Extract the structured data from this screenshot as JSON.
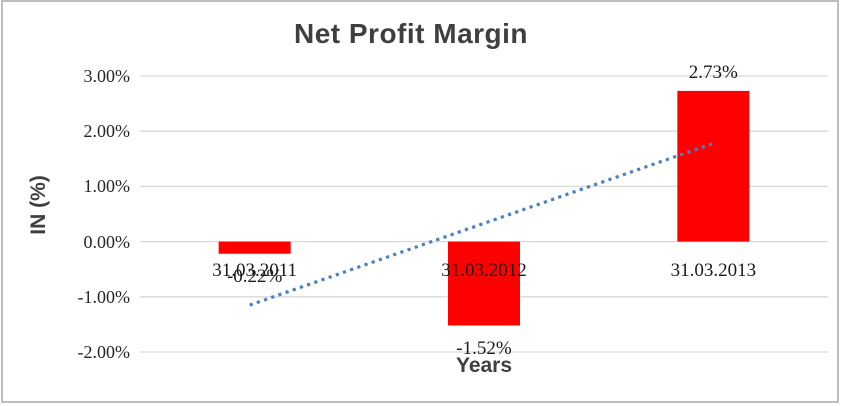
{
  "chart_data": {
    "type": "bar",
    "title": "Net Profit Margin",
    "xlabel": "Years",
    "ylabel": "IN (%)",
    "categories": [
      "31.03.2011",
      "31.03.2012",
      "31.03.2013"
    ],
    "values": [
      -0.22,
      -1.52,
      2.73
    ],
    "data_labels": [
      "-0.22%",
      "-1.52%",
      "2.73%"
    ],
    "y_axis": {
      "tick_labels": [
        "3.00%",
        "2.00%",
        "1.00%",
        "0.00%",
        "-1.00%",
        "-2.00%"
      ],
      "tick_values": [
        3,
        2,
        1,
        0,
        -1,
        -2
      ],
      "ylim": [
        -2,
        3
      ]
    },
    "grid": true,
    "legend": false,
    "bar_color": "#FF0000",
    "gridline_color": "#d9d9d9",
    "trendline": {
      "type": "linear",
      "style": "dotted",
      "color": "#4A80C4",
      "start_value": -1.15,
      "end_value": 1.78
    }
  }
}
